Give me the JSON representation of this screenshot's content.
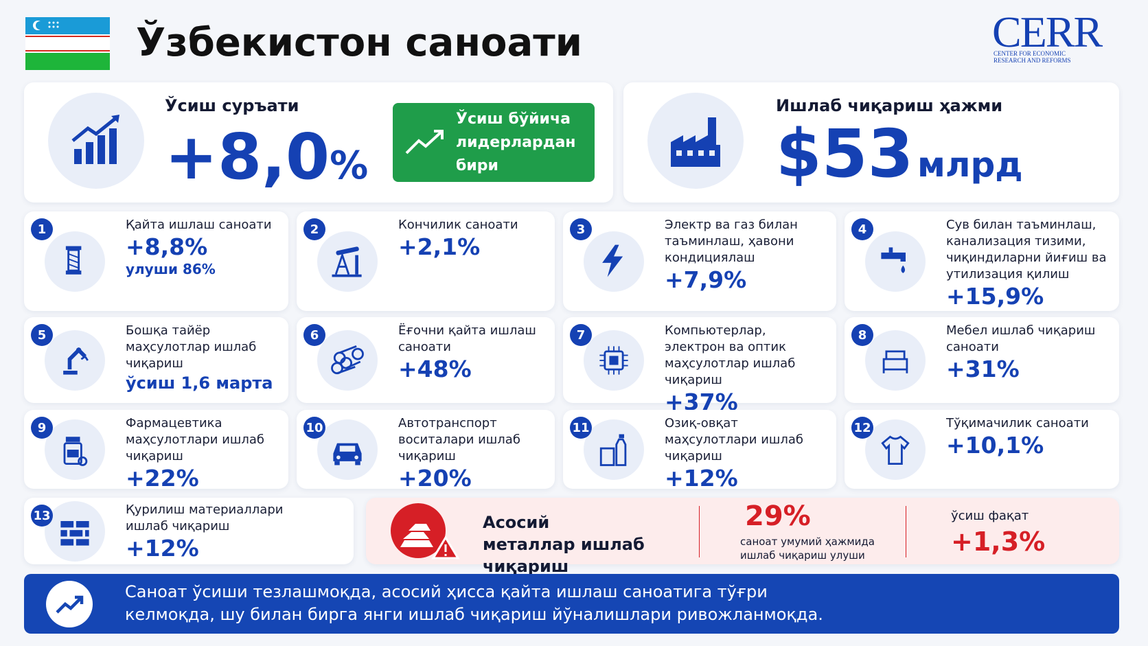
{
  "header": {
    "title": "Ўзбекистон саноати",
    "logo": "CERR",
    "logo_subtitle_1": "CENTER FOR ECONOMIC",
    "logo_subtitle_2": "RESEARCH AND REFORMS"
  },
  "growth": {
    "label": "Ўсиш суръати",
    "value": "+8,0",
    "unit": "%",
    "badge": "Ўсиш бўйича лидерлардан бири"
  },
  "volume": {
    "label": "Ишлаб чиқариш ҳажми",
    "value": "$53",
    "unit": "млрд"
  },
  "industries": [
    {
      "number": "1",
      "label": "Қайта ишлаш саноати",
      "value": "+8,8%",
      "note": "улуши 86%"
    },
    {
      "number": "2",
      "label": "Кончилик саноати",
      "value": "+2,1%"
    },
    {
      "number": "3",
      "label": "Электр ва газ билан таъминлаш, ҳавони кондициялаш",
      "value": "+7,9%"
    },
    {
      "number": "4",
      "label": "Сув билан таъминлаш, канализация тизими, чиқиндиларни йиғиш ва утилизация қилиш",
      "value": "+15,9%"
    },
    {
      "number": "5",
      "label": "Бошқа тайёр маҳсулотлар ишлаб чиқариш",
      "value": "ўсиш 1,6 марта"
    },
    {
      "number": "6",
      "label": "Ёғочни қайта ишлаш саноати",
      "value": "+48%"
    },
    {
      "number": "7",
      "label": "Компьютерлар, электрон ва оптик маҳсулотлар ишлаб чиқариш",
      "value": "+37%"
    },
    {
      "number": "8",
      "label": "Мебел ишлаб чиқариш саноати",
      "value": "+31%"
    },
    {
      "number": "9",
      "label": "Фармацевтика маҳсулотлари ишлаб чиқариш",
      "value": "+22%"
    },
    {
      "number": "10",
      "label": "Автотранспорт воситалари ишлаб чиқариш",
      "value": "+20%"
    },
    {
      "number": "11",
      "label": "Озиқ-овқат маҳсулотлари ишлаб чиқариш",
      "value": "+12%"
    },
    {
      "number": "12",
      "label": "Тўқимачилик саноати",
      "value": "+10,1%"
    },
    {
      "number": "13",
      "label": "Қурилиш материаллари ишлаб чиқариш",
      "value": "+12%"
    }
  ],
  "metals": {
    "title": "Асосий металлар ишлаб чиқариш",
    "share": "29%",
    "share_label": "саноат умумий ҳажмида ишлаб чиқариш улуши",
    "growth_label": "ўсиш фақат",
    "growth": "+1,3%"
  },
  "footer": {
    "text": "Саноат ўсиши тезлашмоқда, асосий ҳисса қайта ишлаш саноатига тўғри келмоқда, шу билан бирга янги ишлаб чиқариш йўналишлари ривожланмоқда."
  }
}
